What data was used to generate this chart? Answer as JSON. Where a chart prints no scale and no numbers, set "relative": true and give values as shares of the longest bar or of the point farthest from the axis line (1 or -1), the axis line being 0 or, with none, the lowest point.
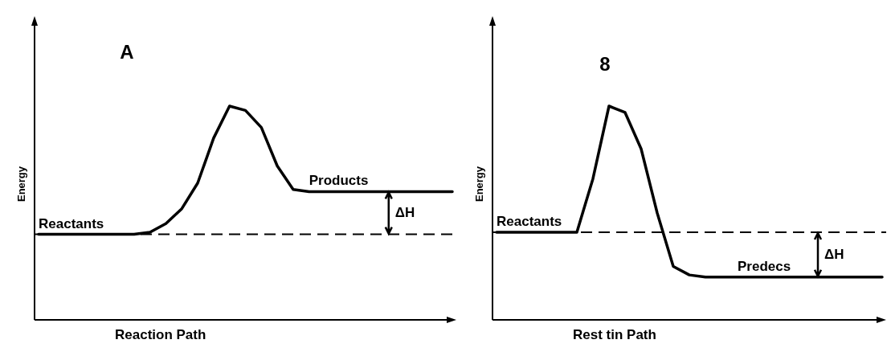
{
  "chart_data": [
    {
      "type": "line",
      "relative": true,
      "title": "A",
      "xlabel": "Reaction Path",
      "ylabel": "Energy",
      "color": "#000000",
      "categories": [
        null,
        null,
        null,
        null,
        null,
        null,
        null,
        null,
        null,
        null,
        null,
        null,
        null,
        null,
        null,
        null,
        null,
        null,
        null,
        null,
        null,
        null,
        null,
        null,
        null,
        null,
        null
      ],
      "values": [
        0.4,
        0.4,
        0.4,
        0.4,
        0.4,
        0.4,
        0.4,
        0.41,
        0.45,
        0.52,
        0.64,
        0.85,
        1,
        0.98,
        0.9,
        0.72,
        0.61,
        0.6,
        0.6,
        0.6,
        0.6,
        0.6,
        0.6,
        0.6,
        0.6,
        0.6,
        0.6
      ],
      "ref_lines": [
        {
          "axis": "y",
          "value": 0.4,
          "line_style": "dashed"
        }
      ],
      "annotations": [
        "Reactants",
        "Products",
        "ΔH"
      ]
    },
    {
      "type": "line",
      "relative": true,
      "title": "8",
      "xlabel": "Rest tin Path",
      "ylabel": "Energy",
      "color": "#000000",
      "categories": [
        null,
        null,
        null,
        null,
        null,
        null,
        null,
        null,
        null,
        null,
        null,
        null,
        null,
        null,
        null,
        null,
        null,
        null,
        null,
        null,
        null,
        null,
        null,
        null,
        null
      ],
      "values": [
        0.41,
        0.41,
        0.41,
        0.41,
        0.41,
        0.41,
        0.66,
        1,
        0.97,
        0.8,
        0.5,
        0.25,
        0.21,
        0.2,
        0.2,
        0.2,
        0.2,
        0.2,
        0.2,
        0.2,
        0.2,
        0.2,
        0.2,
        0.2,
        0.2
      ],
      "ref_lines": [
        {
          "axis": "y",
          "value": 0.41,
          "line_style": "dashed"
        }
      ],
      "annotations": [
        "Reactants",
        "Predecs",
        "ΔH"
      ]
    }
  ]
}
